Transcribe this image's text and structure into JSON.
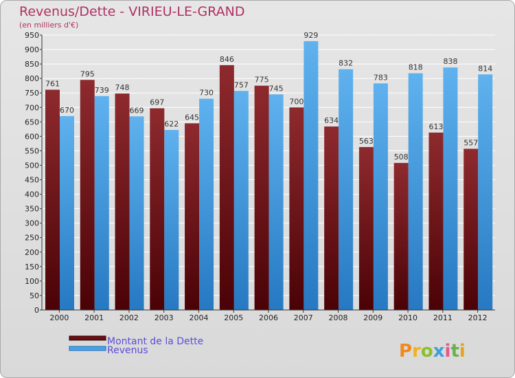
{
  "chart_data": {
    "type": "bar",
    "title": "Revenus/Dette - VIRIEU-LE-GRAND",
    "subtitle": "(en milliers d'€)",
    "categories": [
      "2000",
      "2001",
      "2002",
      "2003",
      "2004",
      "2005",
      "2006",
      "2007",
      "2008",
      "2009",
      "2010",
      "2011",
      "2012"
    ],
    "series": [
      {
        "name": "Montant de la Dette",
        "color": "#7a1418",
        "values": [
          761,
          795,
          748,
          697,
          645,
          846,
          775,
          700,
          634,
          563,
          508,
          613,
          557
        ]
      },
      {
        "name": "Revenus",
        "color": "#4aa3e8",
        "values": [
          670,
          739,
          669,
          622,
          730,
          757,
          745,
          929,
          832,
          783,
          818,
          838,
          814
        ]
      }
    ],
    "ylim": [
      0,
      950
    ],
    "ytick_step": 50,
    "grid": true,
    "legend": "bottom-left",
    "xlabel": "",
    "ylabel": ""
  },
  "logo": {
    "text": "Proxiti"
  }
}
